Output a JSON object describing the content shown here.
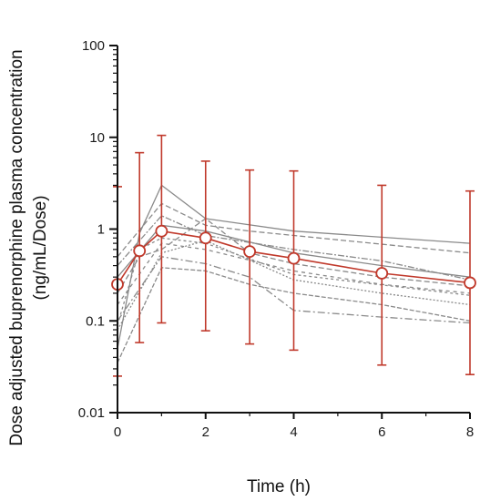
{
  "chart_data": {
    "type": "line",
    "xlabel": "Time (h)",
    "ylabel_line1": "Dose adjusted buprenorphine plasma concentration",
    "ylabel_line2": "(ng/mL/Dose)",
    "yscale": "log",
    "xlim": [
      0,
      8
    ],
    "ylim": [
      0.01,
      100
    ],
    "x_ticks": [
      "0",
      "2",
      "4",
      "6",
      "8"
    ],
    "y_ticks": [
      "0.01",
      "0.1",
      "1",
      "10",
      "100"
    ],
    "grid": false,
    "legend": "none",
    "mean_series": {
      "x": [
        0,
        0.5,
        1,
        2,
        3,
        4,
        6,
        8
      ],
      "y": [
        0.25,
        0.58,
        0.95,
        0.8,
        0.57,
        0.48,
        0.33,
        0.26
      ],
      "error_low": [
        0.025,
        0.058,
        0.095,
        0.078,
        0.056,
        0.048,
        0.033,
        0.026
      ],
      "error_high": [
        2.9,
        6.8,
        10.5,
        5.5,
        4.4,
        4.3,
        3.0,
        2.6
      ],
      "color": "#c0392b"
    },
    "individual_series": [
      {
        "x": [
          0,
          0.5,
          1,
          2,
          4,
          8
        ],
        "y": [
          0.05,
          0.9,
          3.0,
          1.3,
          0.95,
          0.7
        ]
      },
      {
        "x": [
          0,
          1,
          2,
          3,
          8
        ],
        "y": [
          0.5,
          1.9,
          1.1,
          0.95,
          0.55
        ]
      },
      {
        "x": [
          0,
          0.5,
          1,
          2,
          4,
          8
        ],
        "y": [
          0.09,
          0.6,
          0.8,
          0.7,
          0.32,
          0.19
        ]
      },
      {
        "x": [
          0,
          1,
          2,
          3,
          4,
          6,
          8
        ],
        "y": [
          0.1,
          0.5,
          0.42,
          0.3,
          0.13,
          0.11,
          0.095
        ]
      },
      {
        "x": [
          0,
          1,
          2,
          3,
          4,
          6,
          8
        ],
        "y": [
          0.035,
          0.38,
          0.35,
          0.25,
          0.2,
          0.15,
          0.1
        ]
      },
      {
        "x": [
          0,
          1,
          2,
          4,
          6,
          8
        ],
        "y": [
          0.3,
          1.1,
          0.95,
          0.55,
          0.4,
          0.3
        ]
      },
      {
        "x": [
          0,
          1,
          2,
          4,
          6,
          8
        ],
        "y": [
          0.15,
          0.7,
          0.6,
          0.35,
          0.25,
          0.2
        ]
      },
      {
        "x": [
          0,
          1,
          2,
          4,
          6,
          8
        ],
        "y": [
          0.08,
          0.55,
          0.75,
          0.28,
          0.2,
          0.15
        ]
      },
      {
        "x": [
          0,
          1,
          2,
          4,
          6,
          8
        ],
        "y": [
          0.4,
          1.4,
          0.85,
          0.6,
          0.45,
          0.28
        ]
      },
      {
        "x": [
          0,
          0.5,
          1,
          2,
          3,
          4,
          6,
          8
        ],
        "y": [
          0.2,
          0.5,
          0.6,
          1.3,
          0.55,
          0.42,
          0.3,
          0.24
        ]
      }
    ],
    "individual_color": "#8a8a8a"
  }
}
